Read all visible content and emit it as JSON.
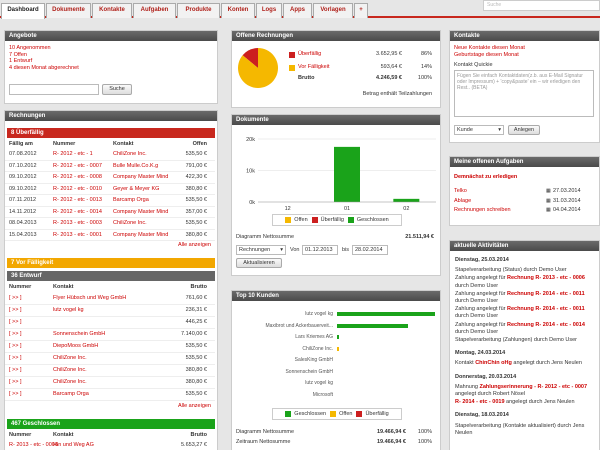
{
  "nav": {
    "tabs": [
      "Dashboard",
      "Dokumente",
      "Kontakte",
      "Aufgaben",
      "Produkte",
      "Konten",
      "Logs",
      "Apps",
      "Vorlagen",
      "+"
    ],
    "search_placeholder": "Suche"
  },
  "angebote": {
    "title": "Angebote",
    "lines": [
      "10 Angenommen",
      "7 Offen",
      "1 Entwurf",
      "4 diesen Monat abgerechnet"
    ],
    "button": "Suche"
  },
  "offene": {
    "title": "Offene Rechnungen",
    "rows": [
      {
        "label": "Überfällig",
        "amount": "3.652,95 €",
        "pct": "86%"
      },
      {
        "label": "Vor Fälligkeit",
        "amount": "593,64 €",
        "pct": "14%"
      },
      {
        "label": "Brutto",
        "amount": "4.246,59 €",
        "pct": "100%"
      }
    ],
    "note": "Betrag enthält Teilzahlungen",
    "pie": [
      86,
      14
    ],
    "colors": {
      "overdue": "#cc1f1f",
      "due": "#f5b800",
      "paid": "#1aa31a"
    }
  },
  "kontakte": {
    "title": "Kontakte",
    "links": [
      "Neue Kontakte diesen Monat",
      "Geburtstage diesen Monat"
    ],
    "quickie": "Kontakt Quickie",
    "placeholder": "Fügen Sie einfach Kontaktdaten(z.b. aus E-Mail Signatur oder Impressum) + 'copy&paste' ein – wir erledigen den Rest.. (BETA)",
    "select": "Kunde",
    "button": "Anlegen"
  },
  "rechnungen": {
    "title": "Rechnungen",
    "overdue_header": "8 Überfällig",
    "cols": [
      "Fällig am",
      "Nummer",
      "Kontakt",
      "Offen"
    ],
    "rows": [
      [
        "07.08.2012",
        "R- 2012 - etc - 1",
        "ChiliZone Inc.",
        "535,50 €"
      ],
      [
        "07.10.2012",
        "R- 2012 - etc - 0007",
        "Bulle Mulle.Co.K.g",
        "791,00 €"
      ],
      [
        "09.10.2012",
        "R- 2012 - etc - 0008",
        "Company Master Mind",
        "422,30 €"
      ],
      [
        "09.10.2012",
        "R- 2012 - etc - 0010",
        "Geyer & Meyer KG",
        "380,80 €"
      ],
      [
        "07.11.2012",
        "R- 2012 - etc - 0013",
        "Barcamp Orga",
        "535,50 €"
      ],
      [
        "14.11.2012",
        "R- 2012 - etc - 0014",
        "Company Master Mind",
        "357,00 €"
      ],
      [
        "08.04.2013",
        "R- 2013 - etc - 0003",
        "ChiliZone Inc.",
        "535,50 €"
      ],
      [
        "15.04.2013",
        "R- 2013 - etc - 0001",
        "Company Master Mind",
        "380,80 €"
      ]
    ],
    "show_all": "Alle anzeigen",
    "due_header": "7 Vor Fälligkeit",
    "draft_header": "36 Entwurf",
    "draft_cols": [
      "Nummer",
      "Kontakt",
      "Brutto"
    ],
    "draft_rows": [
      [
        "[ >> ]",
        "Flyer Hübsch und Weg GmbH",
        "761,60 €"
      ],
      [
        "[ >> ]",
        "lutz vogel kg",
        "236,31 €"
      ],
      [
        "[ >> ]",
        "",
        "446,25 €"
      ],
      [
        "[ >> ]",
        "Sonnenschein GmbH",
        "7.140,00 €"
      ],
      [
        "[ >> ]",
        "DiepoMoos GmbH",
        "535,50 €"
      ],
      [
        "[ >> ]",
        "ChiliZone Inc.",
        "535,50 €"
      ],
      [
        "[ >> ]",
        "ChiliZone Inc.",
        "380,80 €"
      ],
      [
        "[ >> ]",
        "ChiliZone Inc.",
        "380,80 €"
      ],
      [
        "[ >> ]",
        "Barcamp Orga",
        "535,50 €"
      ]
    ],
    "paid_header": "467 Geschlossen",
    "paid_row": [
      "R- 2013 - etc - 0006",
      "Hin und Weg AG",
      "5.653,27 €"
    ]
  },
  "dokumente": {
    "title": "Dokumente",
    "chart_data": {
      "type": "bar",
      "categories": [
        "12",
        "01",
        "02"
      ],
      "series": [
        {
          "name": "Offen",
          "values": [
            0,
            0,
            0
          ]
        },
        {
          "name": "Überfällig",
          "values": [
            0,
            0,
            0
          ]
        },
        {
          "name": "Geschlossen",
          "values": [
            0,
            17500,
            1000
          ]
        }
      ],
      "yticks": [
        "20k",
        "10k",
        "0k"
      ],
      "ylim": [
        0,
        20000
      ]
    },
    "legend": [
      "Offen",
      "Überfällig",
      "Geschlossen"
    ],
    "summary_label": "Diagramm Nettosumme",
    "summary_value": "21.511,94 €",
    "select": "Rechnungen",
    "from_label": "Von",
    "from": "01.12.2013",
    "to_label": "bis",
    "to": "28.02.2014",
    "button": "Aktualisieren"
  },
  "top10": {
    "title": "Top 10 Kunden",
    "chart_data": {
      "type": "bar",
      "categories": [
        "lutz vogel kg",
        "Maxibrot und Ackerbauerveit...",
        "Lars Kriemes AG",
        "ChiliZone Inc.",
        "SalesKing GmbH",
        "Sonnenschein GmbH",
        "lutz vogel kg",
        "Microsoft"
      ],
      "series": [
        {
          "name": "Geschlossen",
          "values": [
            100,
            72,
            2,
            0,
            0,
            0,
            0,
            0
          ]
        },
        {
          "name": "Offen",
          "values": [
            0,
            0,
            0,
            2,
            0,
            0,
            0,
            0
          ]
        },
        {
          "name": "Überfällig",
          "values": [
            0,
            0,
            0,
            0,
            0,
            0,
            0,
            0
          ]
        }
      ]
    },
    "legend": [
      "Geschlossen",
      "Offen",
      "Überfällig"
    ],
    "summary": [
      {
        "label": "Diagramm Nettosumme",
        "value": "19.466,94 €",
        "pct": "100%"
      },
      {
        "label": "Zeitraum Nettosumme",
        "value": "19.466,94 €",
        "pct": "100%"
      }
    ]
  },
  "aufgaben": {
    "title": "Meine offenen Aufgaben",
    "soon": "Demnächst zu erledigen",
    "items": [
      {
        "label": "Telko",
        "date": "27.03.2014"
      },
      {
        "label": "Ablage",
        "date": "31.03.2014"
      },
      {
        "label": "Rechnungen schreiben",
        "date": "04.04.2014"
      }
    ]
  },
  "aktiv": {
    "title": "aktuelle Aktivitäten",
    "days": [
      {
        "date": "Dienstag, 25.03.2014",
        "entries": [
          [
            {
              "t": "Stapelverarbeitung (Status) durch Demo User"
            }
          ],
          [
            {
              "t": "Zahlung angelegt für "
            },
            {
              "t": "Rechnung R- 2013 - etc - 0006",
              "r": 1
            },
            {
              "t": " durch Demo User"
            }
          ],
          [
            {
              "t": "Zahlung angelegt für "
            },
            {
              "t": "Rechnung R- 2014 - etc - 0011",
              "r": 1
            },
            {
              "t": " durch Demo User"
            }
          ],
          [
            {
              "t": "Zahlung angelegt für "
            },
            {
              "t": "Rechnung R- 2014 - etc - 0011",
              "r": 1
            },
            {
              "t": " durch Demo User"
            }
          ],
          [
            {
              "t": "Zahlung angelegt für "
            },
            {
              "t": "Rechnung R- 2014 - etc - 0014",
              "r": 1
            },
            {
              "t": " durch Demo User"
            }
          ],
          [
            {
              "t": "Stapelverarbeitung (Zahlungen) durch Demo User"
            }
          ]
        ]
      },
      {
        "date": "Montag, 24.03.2014",
        "entries": [
          [
            {
              "t": "Kontakt "
            },
            {
              "t": "ChinChin oHg",
              "r": 1
            },
            {
              "t": " angelegt durch Jens Neulen"
            }
          ]
        ]
      },
      {
        "date": "Donnerstag, 20.03.2014",
        "entries": [
          [
            {
              "t": "Mahnung "
            },
            {
              "t": "Zahlungserinnerung - R- 2012 - etc - 0007",
              "r": 1
            },
            {
              "t": " angelegt durch Robert Nösel"
            }
          ],
          [
            {
              "t": "R- 2014 - etc - 0019",
              "r": 1
            },
            {
              "t": " angelegt durch Jens Neulen"
            }
          ]
        ]
      },
      {
        "date": "Dienstag, 18.03.2014",
        "entries": [
          [
            {
              "t": "Stapelverarbeitung (Kontakte aktualisiert) durch Jens Neulen"
            }
          ]
        ]
      }
    ]
  }
}
